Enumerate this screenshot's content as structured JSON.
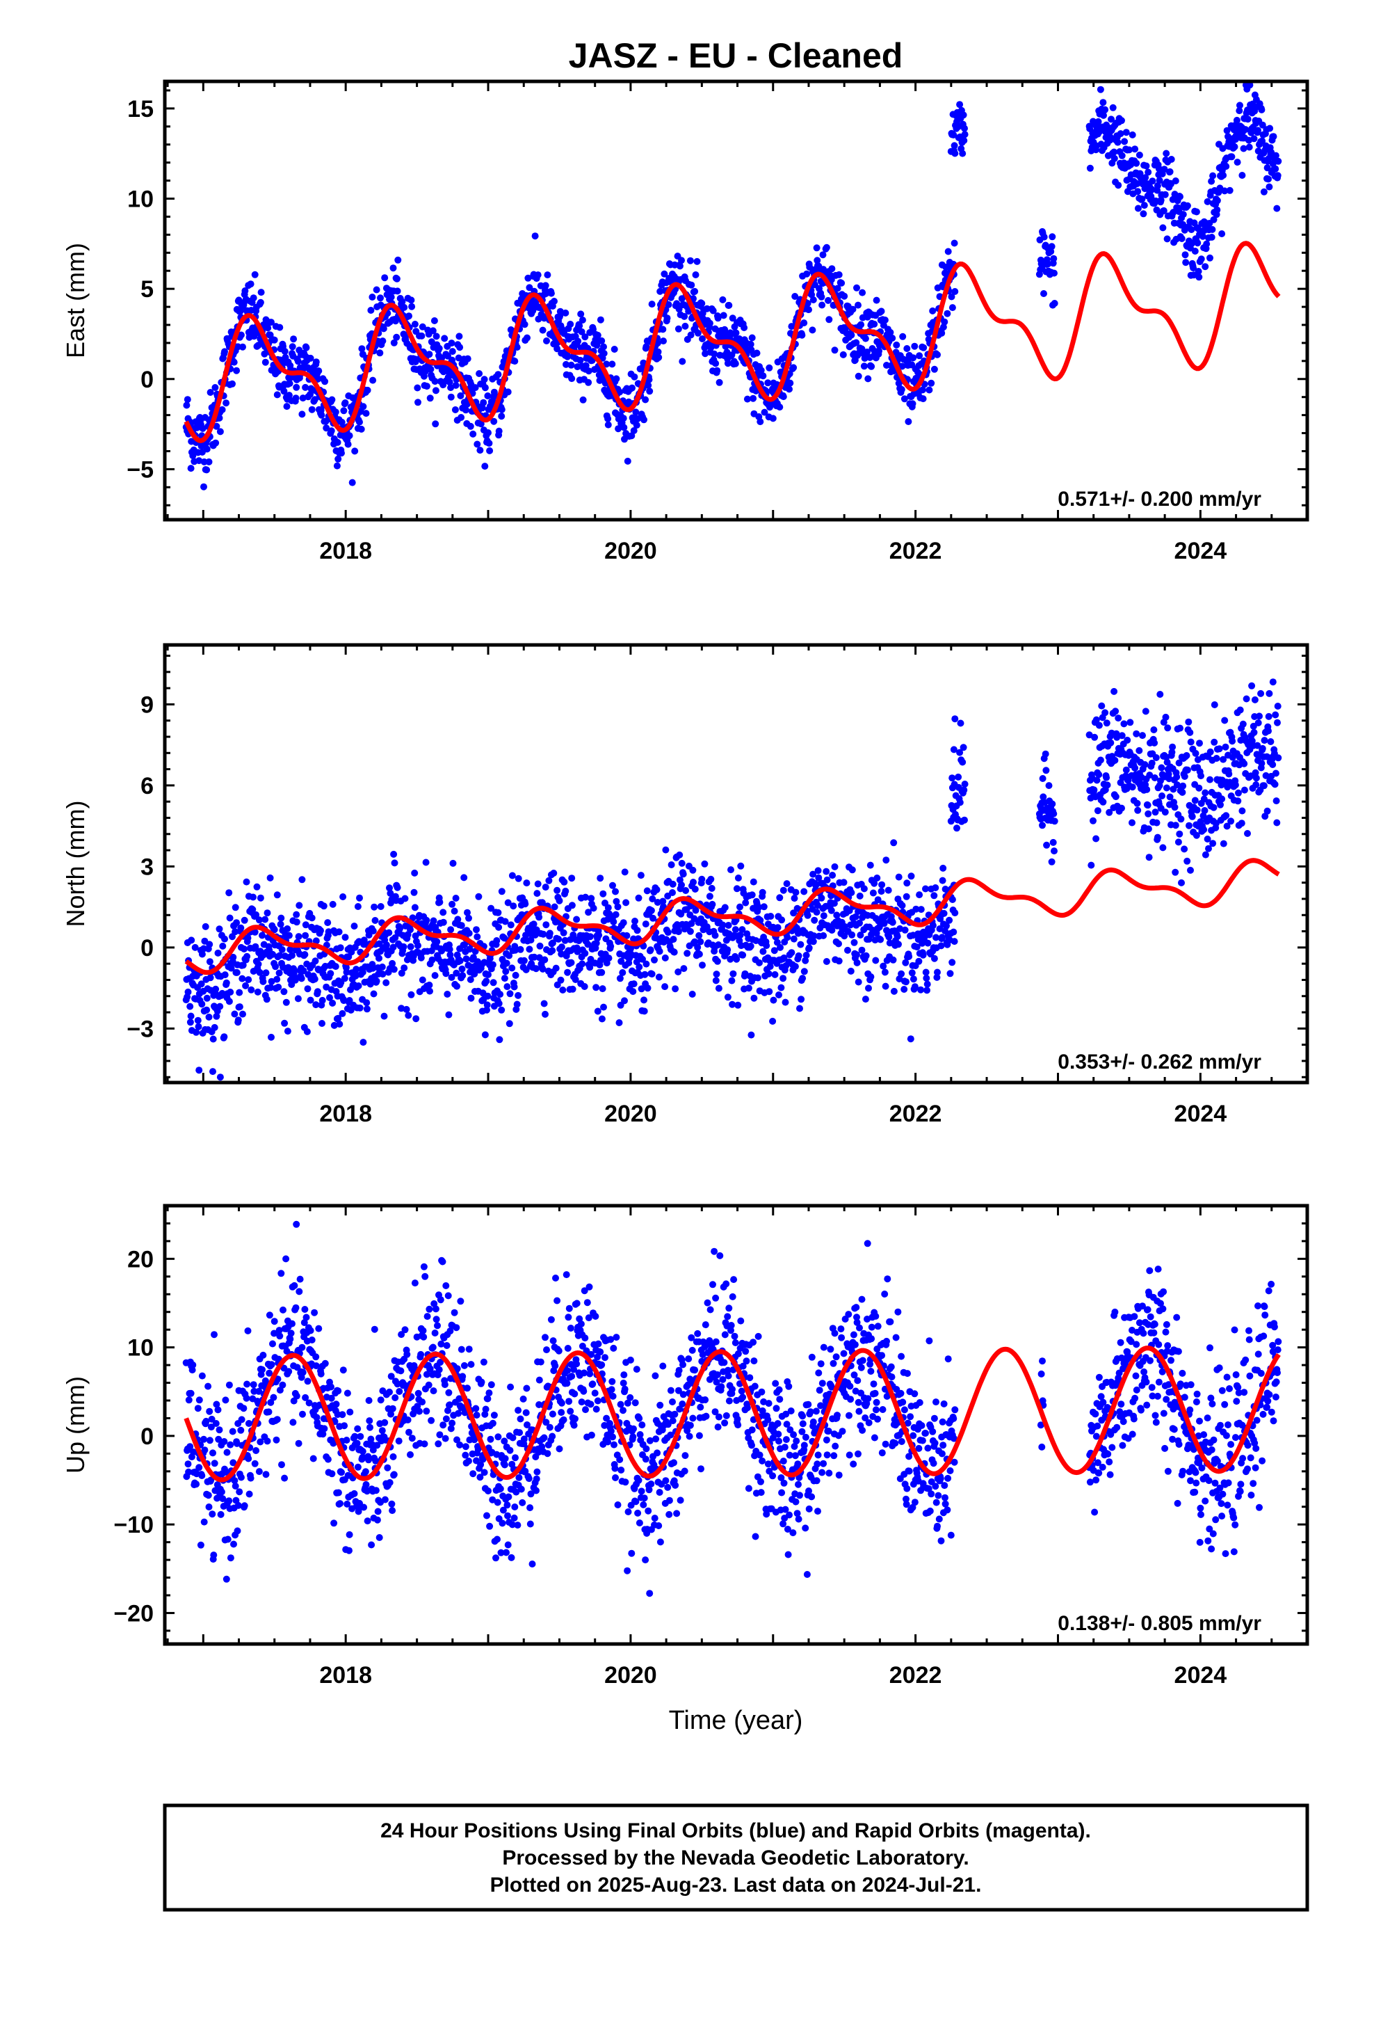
{
  "title": "JASZ  - EU - Cleaned",
  "xlabel": "Time (year)",
  "footer": [
    "24 Hour Positions Using Final Orbits (blue) and Rapid Orbits (magenta).",
    "Processed by the Nevada Geodetic Laboratory.",
    "Plotted on 2025-Aug-23. Last data on 2024-Jul-21."
  ],
  "colors": {
    "points": "#0000ff",
    "model": "#ff0000",
    "frame": "#000000"
  },
  "chart_data": [
    {
      "type": "scatter",
      "ylabel": "East (mm)",
      "rate": "0.571+/- 0.200 mm/yr",
      "xlim": [
        2016.73,
        2024.75
      ],
      "ylim": [
        -7.8,
        16.5
      ],
      "xticks": [
        2018,
        2020,
        2022,
        2024
      ],
      "yticks": [
        -5,
        0,
        5,
        10,
        15
      ],
      "ytick_labels": [
        "−5",
        "0",
        "5",
        "10",
        "15"
      ],
      "data_segments": [
        {
          "start": 2016.88,
          "end": 2022.28,
          "offset": 0.0,
          "noise": 1.0
        },
        {
          "start": 2022.25,
          "end": 2022.35,
          "offset": 7.5,
          "noise": 0.7
        },
        {
          "start": 2022.87,
          "end": 2022.98,
          "offset": 6.0,
          "noise": 0.9
        },
        {
          "start": 2023.22,
          "end": 2024.55,
          "offset": 7.0,
          "noise": 1.0
        }
      ],
      "model": {
        "amplitude": 2.6,
        "phase_shift": 0.15,
        "harmonic2": 1.3,
        "offset": -0.1,
        "rate": 0.571,
        "ref_year": 2016.88
      }
    },
    {
      "type": "scatter",
      "ylabel": "North (mm)",
      "rate": "0.353+/- 0.262 mm/yr",
      "xlim": [
        2016.73,
        2024.75
      ],
      "ylim": [
        -5.0,
        11.2
      ],
      "xticks": [
        2018,
        2020,
        2022,
        2024
      ],
      "yticks": [
        -3,
        0,
        3,
        6,
        9
      ],
      "ytick_labels": [
        "−3",
        "0",
        "3",
        "6",
        "9"
      ],
      "data_segments": [
        {
          "start": 2016.88,
          "end": 2022.28,
          "offset": -0.6,
          "noise": 1.1
        },
        {
          "start": 2022.25,
          "end": 2022.35,
          "offset": 3.5,
          "noise": 1.0
        },
        {
          "start": 2022.87,
          "end": 2022.98,
          "offset": 3.7,
          "noise": 0.8
        },
        {
          "start": 2023.22,
          "end": 2024.55,
          "offset": 4.0,
          "noise": 1.2
        }
      ],
      "model": {
        "amplitude": 0.6,
        "phase_shift": 0.2,
        "harmonic2": 0.3,
        "offset": -0.2,
        "rate": 0.353,
        "ref_year": 2016.88
      }
    },
    {
      "type": "scatter",
      "ylabel": "Up (mm)",
      "rate": "0.138+/- 0.805 mm/yr",
      "xlim": [
        2016.73,
        2024.75
      ],
      "ylim": [
        -23.5,
        26.0
      ],
      "xticks": [
        2018,
        2020,
        2022,
        2024
      ],
      "yticks": [
        -20,
        -10,
        0,
        10,
        20
      ],
      "ytick_labels": [
        "−20",
        "−10",
        "0",
        "10",
        "20"
      ],
      "data_segments": [
        {
          "start": 2016.88,
          "end": 2022.28,
          "offset": 0.0,
          "noise": 4.5
        },
        {
          "start": 2022.88,
          "end": 2022.9,
          "offset": 0.0,
          "noise": 3.0
        },
        {
          "start": 2023.22,
          "end": 2024.55,
          "offset": 0.0,
          "noise": 4.5
        }
      ],
      "model": {
        "amplitude": 7.0,
        "phase_shift": 0.38,
        "harmonic2": 0.0,
        "offset": 2.0,
        "rate": 0.138,
        "ref_year": 2016.88
      }
    }
  ]
}
